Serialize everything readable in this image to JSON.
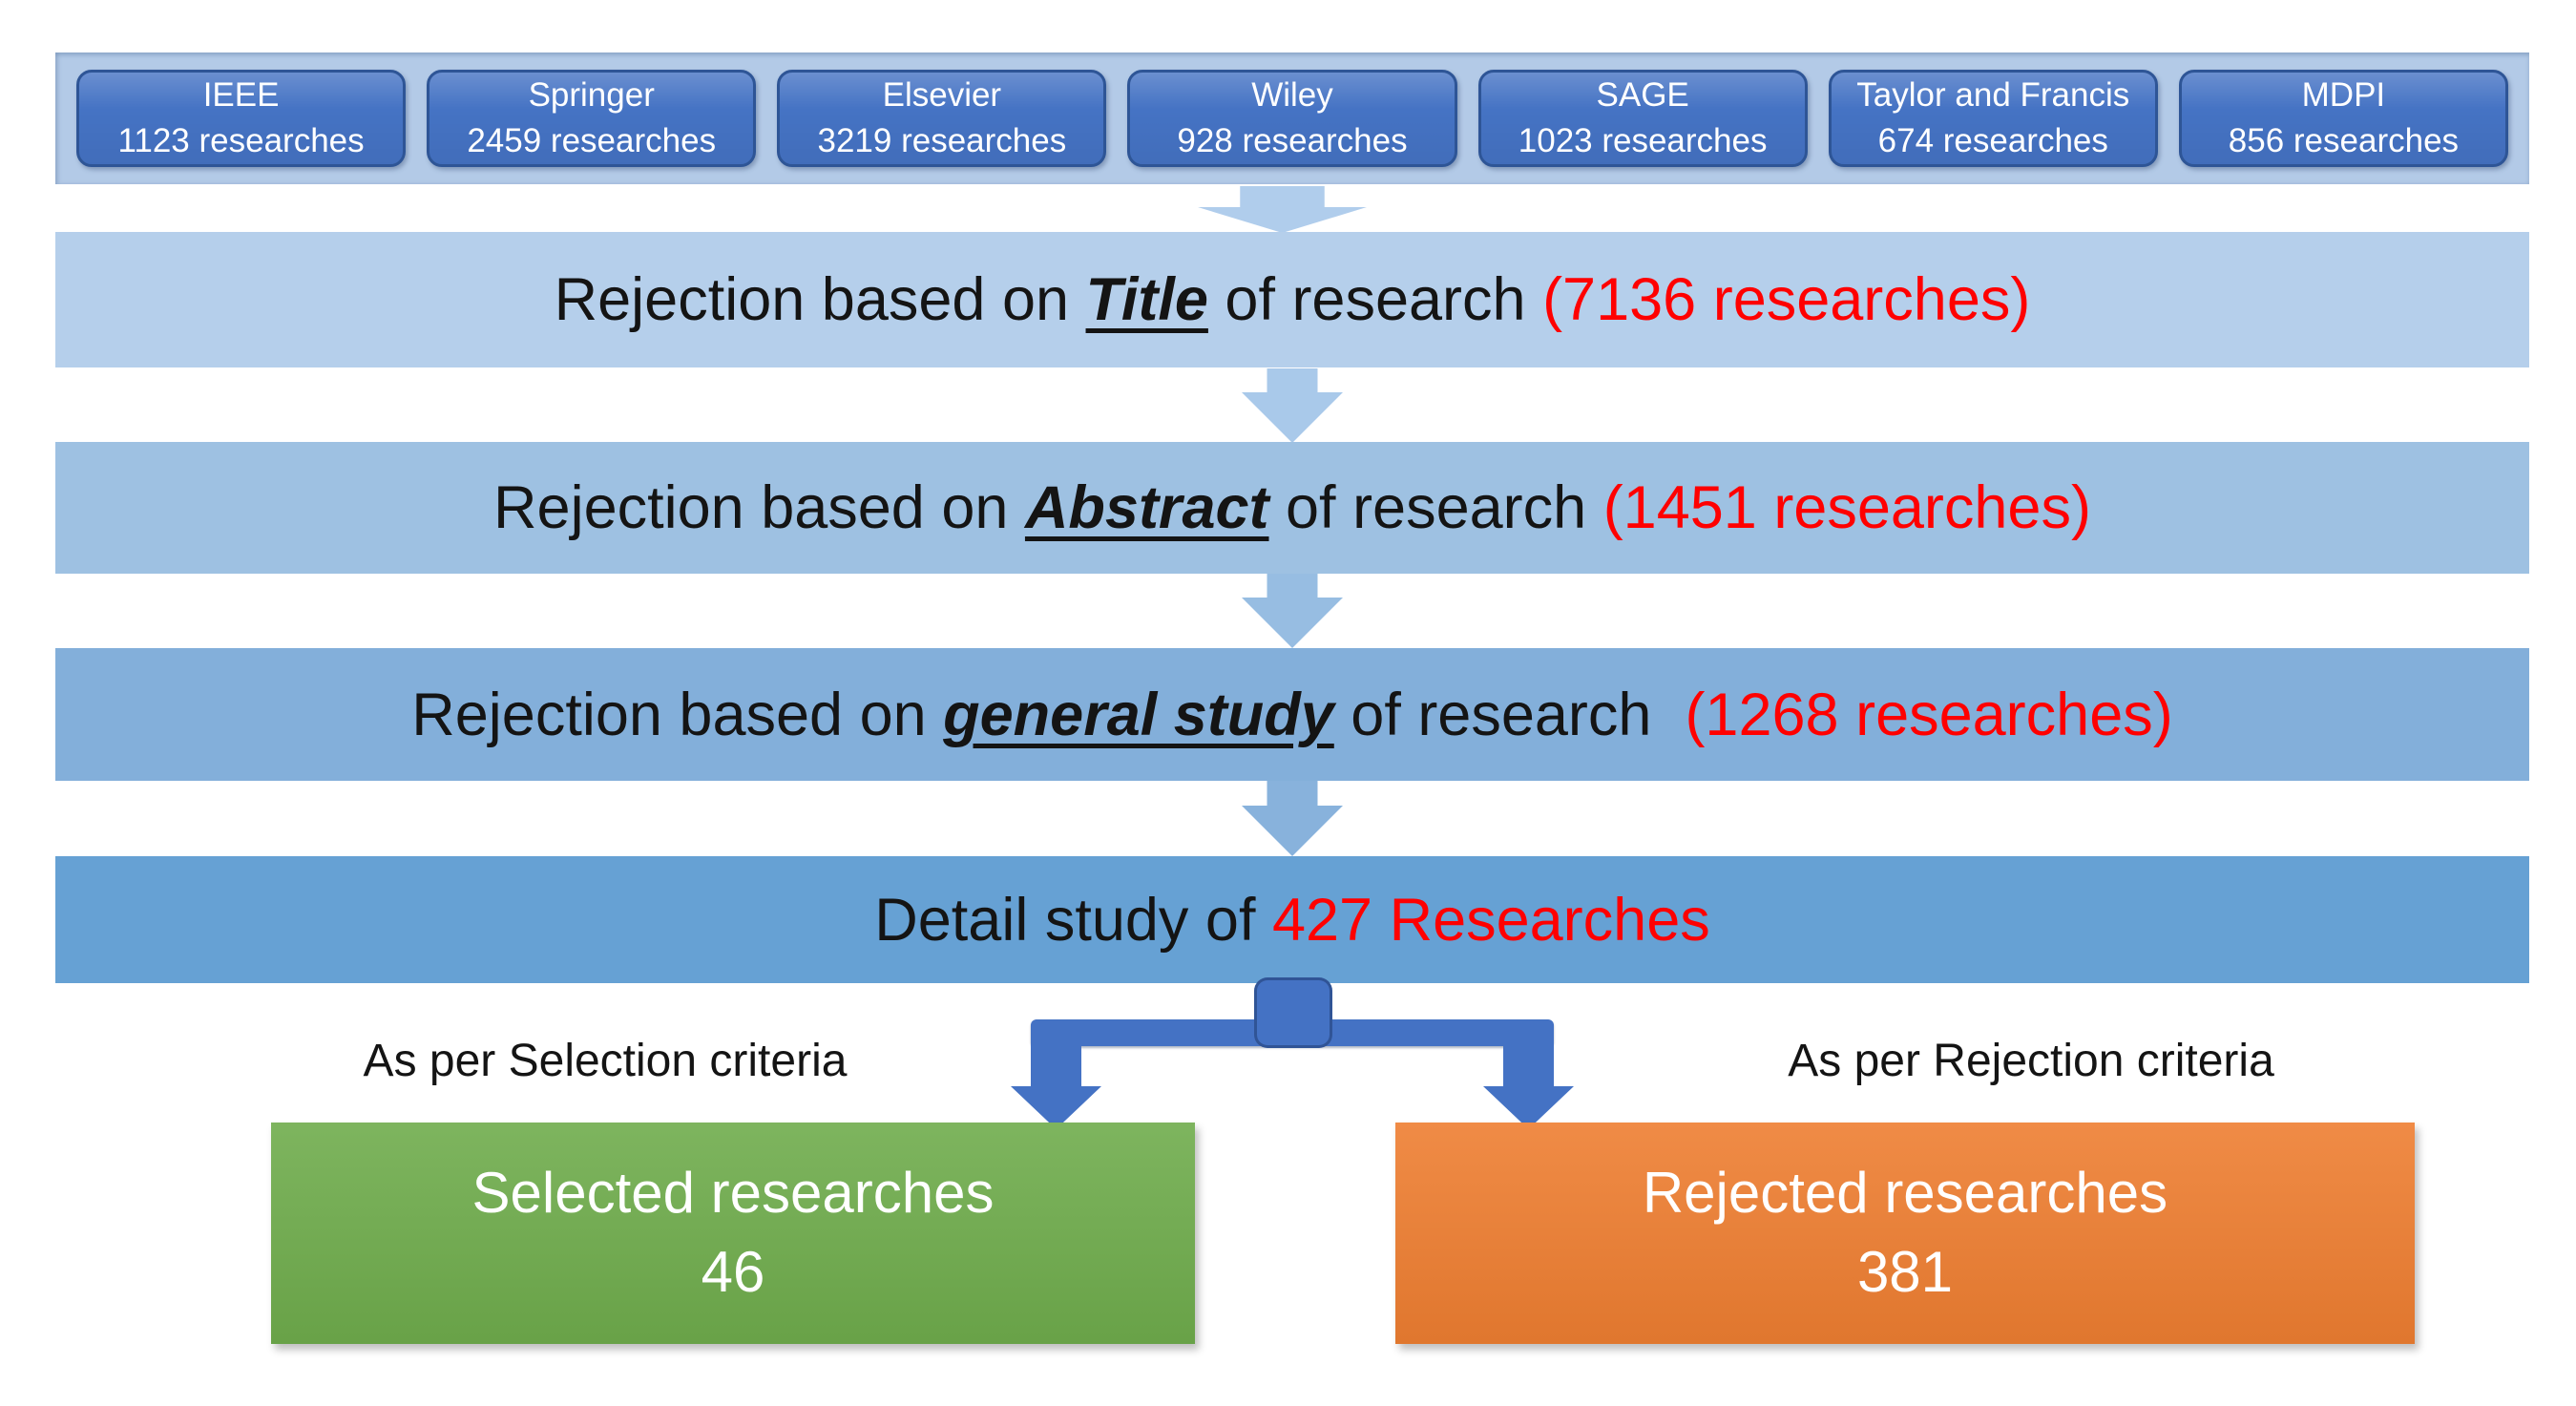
{
  "colors": {
    "sources_band_bg": "#b3cae7",
    "source_box_fill": "#4573c4",
    "source_box_border": "#2e5596",
    "stage1_bg": "#b5cfeb",
    "stage2_bg": "#9ec1e2",
    "stage3_bg": "#83afda",
    "stage4_bg": "#66a1d4",
    "flow_arrow_1": "#b0cdec",
    "flow_arrow_2": "#a9c9ea",
    "flow_arrow_3": "#97bde2",
    "flow_arrow_4": "#88b2dc",
    "connector_blue": "#4472c4",
    "selected_green": "#6fac4c",
    "rejected_orange": "#ee7e31",
    "count_red": "#ff0000",
    "text_dark": "#141414"
  },
  "sources": [
    {
      "name": "IEEE",
      "count": "1123 researches"
    },
    {
      "name": "Springer",
      "count": "2459 researches"
    },
    {
      "name": "Elsevier",
      "count": "3219 researches"
    },
    {
      "name": "Wiley",
      "count": "928 researches"
    },
    {
      "name": "SAGE",
      "count": "1023 researches"
    },
    {
      "name": "Taylor and Francis",
      "count": "674 researches"
    },
    {
      "name": "MDPI",
      "count": "856 researches"
    }
  ],
  "stages": [
    {
      "pre": "Rejection based on ",
      "keyword": "Title",
      "mid": " of research ",
      "count": "(7136 researches)"
    },
    {
      "pre": "Rejection based on ",
      "keyword": "Abstract",
      "mid": " of research ",
      "count": "(1451 researches)"
    },
    {
      "pre": "Rejection based on ",
      "keyword": "general study",
      "mid": " of research  ",
      "count": "(1268 researches)"
    }
  ],
  "detail_stage": {
    "pre": "Detail study of ",
    "count": "427 Researches"
  },
  "branches": {
    "left": {
      "label": "As per Selection criteria",
      "box_title": "Selected researches",
      "box_value": "46"
    },
    "right": {
      "label": "As per Rejection criteria",
      "box_title": "Rejected researches",
      "box_value": "381"
    }
  }
}
